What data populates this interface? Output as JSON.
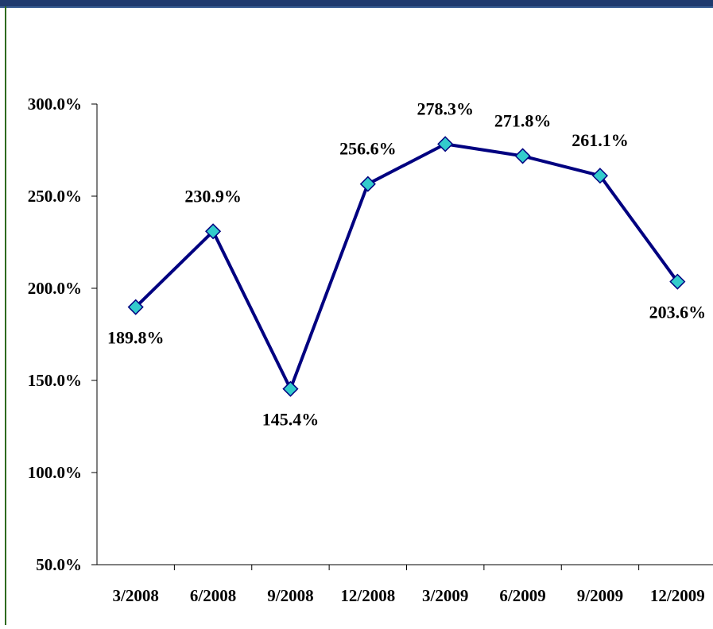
{
  "colors": {
    "background": "#ffffff",
    "top_band": "#1f3a6e",
    "top_band_accent": "#3a5f94",
    "left_border": "#2e6b1f",
    "line": "#000080",
    "marker_fill": "#33cccc",
    "marker_stroke": "#000080",
    "axis": "#000000"
  },
  "chart_data": {
    "type": "line",
    "title": "",
    "xlabel": "",
    "ylabel": "",
    "categories": [
      "3/2008",
      "6/2008",
      "9/2008",
      "12/2008",
      "3/2009",
      "6/2009",
      "9/2009",
      "12/2009"
    ],
    "series": [
      {
        "values": [
          189.8,
          230.9,
          145.4,
          256.6,
          278.3,
          271.8,
          261.1,
          203.6
        ],
        "labels": [
          "189.8%",
          "230.9%",
          "145.4%",
          "256.6%",
          "278.3%",
          "271.8%",
          "261.1%",
          "203.6%"
        ],
        "label_positions": [
          "below",
          "above",
          "below",
          "above",
          "above",
          "above",
          "above",
          "below"
        ]
      }
    ],
    "ylim": [
      50,
      300
    ],
    "yticks": [
      50,
      100,
      150,
      200,
      250,
      300
    ],
    "ytick_labels": [
      "50.0%",
      "100.0%",
      "150.0%",
      "200.0%",
      "250.0%",
      "300.0%"
    ],
    "grid": false,
    "legend": "none",
    "marker": "diamond"
  }
}
